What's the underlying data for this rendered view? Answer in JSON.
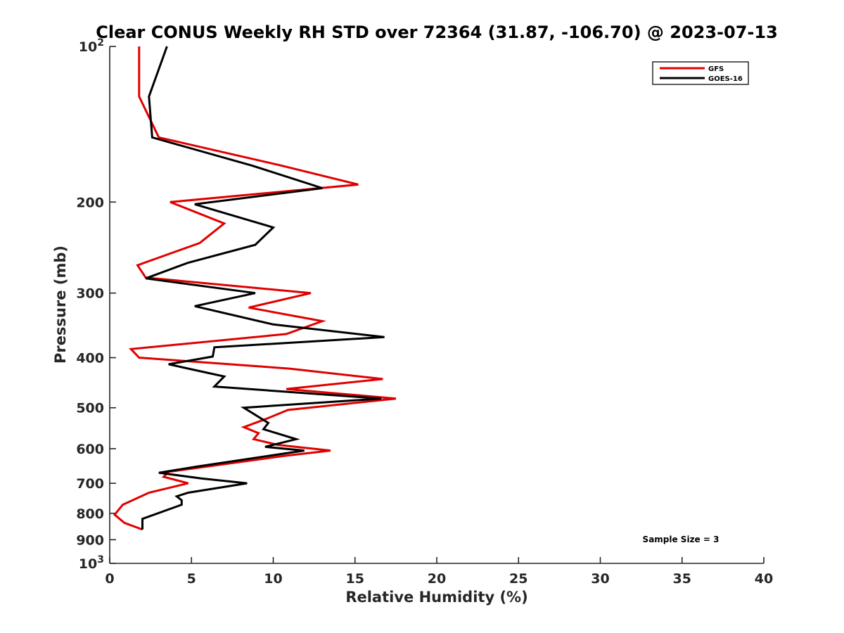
{
  "chart_data": {
    "type": "line",
    "title": "Clear CONUS Weekly RH STD over 72364 (31.87, -106.70) @ 2023-07-13",
    "xlabel": "Relative Humidity (%)",
    "ylabel": "Pressure (mb)",
    "xlim": [
      0,
      40
    ],
    "ylim": [
      100,
      1000
    ],
    "y_scale": "log",
    "y_reversed": true,
    "grid": false,
    "legend_position": "top-right",
    "x_ticks": [
      "0",
      "5",
      "10",
      "15",
      "20",
      "25",
      "30",
      "35",
      "40"
    ],
    "y_ticks": [
      {
        "value": 100,
        "base": "10",
        "exp": "2"
      },
      {
        "value": 200,
        "label": "200"
      },
      {
        "value": 300,
        "label": "300"
      },
      {
        "value": 400,
        "label": "400"
      },
      {
        "value": 500,
        "label": "500"
      },
      {
        "value": 600,
        "label": "600"
      },
      {
        "value": 700,
        "label": "700"
      },
      {
        "value": 800,
        "label": "800"
      },
      {
        "value": 900,
        "label": "900"
      },
      {
        "value": 1000,
        "base": "10",
        "exp": "3"
      }
    ],
    "annotation": "Sample Size = 3",
    "series": [
      {
        "name": "GFS",
        "color": "#e00000",
        "points": [
          [
            1.8,
            100
          ],
          [
            1.8,
            125
          ],
          [
            3.0,
            150
          ],
          [
            10.5,
            170
          ],
          [
            15.2,
            185
          ],
          [
            3.7,
            200
          ],
          [
            7.0,
            220
          ],
          [
            5.5,
            240
          ],
          [
            1.7,
            265
          ],
          [
            2.2,
            280
          ],
          [
            12.3,
            300
          ],
          [
            8.5,
            320
          ],
          [
            13.0,
            340
          ],
          [
            10.8,
            360
          ],
          [
            1.3,
            385
          ],
          [
            1.8,
            400
          ],
          [
            11.0,
            420
          ],
          [
            16.7,
            440
          ],
          [
            10.8,
            460
          ],
          [
            17.5,
            480
          ],
          [
            10.9,
            505
          ],
          [
            9.6,
            525
          ],
          [
            8.2,
            545
          ],
          [
            9.1,
            560
          ],
          [
            8.8,
            575
          ],
          [
            10.3,
            590
          ],
          [
            13.5,
            605
          ],
          [
            10.6,
            620
          ],
          [
            3.6,
            665
          ],
          [
            3.3,
            680
          ],
          [
            4.8,
            700
          ],
          [
            2.4,
            730
          ],
          [
            0.8,
            770
          ],
          [
            0.3,
            805
          ],
          [
            0.9,
            835
          ],
          [
            2.0,
            860
          ]
        ]
      },
      {
        "name": "GOES-16",
        "color": "#000000",
        "points": [
          [
            3.5,
            100
          ],
          [
            2.4,
            125
          ],
          [
            2.6,
            150
          ],
          [
            8.7,
            170
          ],
          [
            13.0,
            188
          ],
          [
            5.2,
            202
          ],
          [
            10.0,
            224
          ],
          [
            8.9,
            242
          ],
          [
            4.8,
            262
          ],
          [
            2.2,
            281
          ],
          [
            8.9,
            300
          ],
          [
            5.2,
            318
          ],
          [
            10.0,
            345
          ],
          [
            16.8,
            365
          ],
          [
            6.4,
            382
          ],
          [
            6.3,
            398
          ],
          [
            3.6,
            412
          ],
          [
            7.0,
            435
          ],
          [
            6.4,
            455
          ],
          [
            16.6,
            480
          ],
          [
            8.2,
            500
          ],
          [
            9.7,
            535
          ],
          [
            9.4,
            550
          ],
          [
            11.4,
            575
          ],
          [
            9.5,
            595
          ],
          [
            11.9,
            605
          ],
          [
            5.3,
            650
          ],
          [
            3.0,
            668
          ],
          [
            5.6,
            685
          ],
          [
            8.4,
            700
          ],
          [
            4.8,
            730
          ],
          [
            4.1,
            742
          ],
          [
            4.4,
            755
          ],
          [
            4.4,
            770
          ],
          [
            2.0,
            820
          ],
          [
            2.0,
            860
          ]
        ]
      }
    ]
  }
}
